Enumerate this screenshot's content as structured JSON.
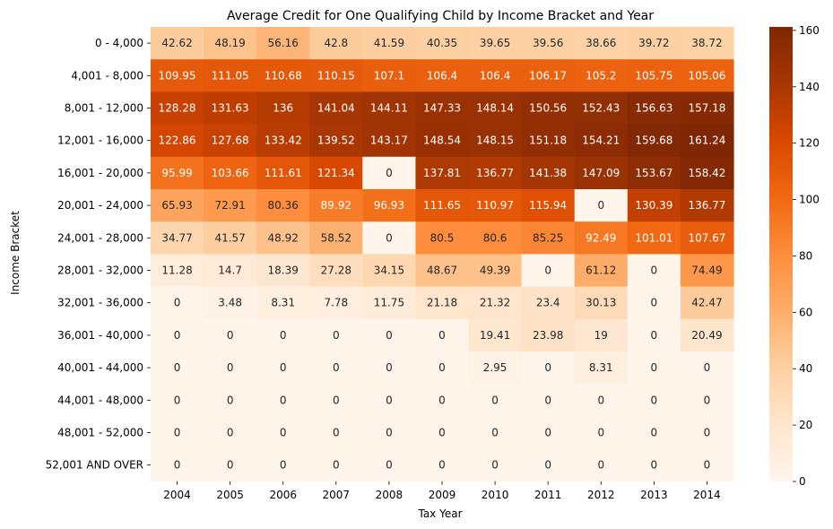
{
  "chart_data": {
    "type": "heatmap",
    "title": "Average Credit for One Qualifying Child by Income Bracket and Year",
    "xlabel": "Tax Year",
    "ylabel": "Income Bracket",
    "x": [
      "2004",
      "2005",
      "2006",
      "2007",
      "2008",
      "2009",
      "2010",
      "2011",
      "2012",
      "2013",
      "2014"
    ],
    "y": [
      "0 - 4,000",
      "4,001 - 8,000",
      "8,001 - 12,000",
      "12,001 - 16,000",
      "16,001 - 20,000",
      "20,001 - 24,000",
      "24,001 - 28,000",
      "28,001 - 32,000",
      "32,001 - 36,000",
      "36,001 - 40,000",
      "40,001 - 44,000",
      "44,001 - 48,000",
      "48,001 - 52,000",
      "52,001 AND OVER"
    ],
    "values": [
      [
        "42.62",
        "48.19",
        "56.16",
        "42.8",
        "41.59",
        "40.35",
        "39.65",
        "39.56",
        "38.66",
        "39.72",
        "38.72"
      ],
      [
        "109.95",
        "111.05",
        "110.68",
        "110.15",
        "107.1",
        "106.4",
        "106.4",
        "106.17",
        "105.2",
        "105.75",
        "105.06"
      ],
      [
        "128.28",
        "131.63",
        "136",
        "141.04",
        "144.11",
        "147.33",
        "148.14",
        "150.56",
        "152.43",
        "156.63",
        "157.18"
      ],
      [
        "122.86",
        "127.68",
        "133.42",
        "139.52",
        "143.17",
        "148.54",
        "148.15",
        "151.18",
        "154.21",
        "159.68",
        "161.24"
      ],
      [
        "95.99",
        "103.66",
        "111.61",
        "121.34",
        "0",
        "137.81",
        "136.77",
        "141.38",
        "147.09",
        "153.67",
        "158.42"
      ],
      [
        "65.93",
        "72.91",
        "80.36",
        "89.92",
        "96.93",
        "111.65",
        "110.97",
        "115.94",
        "0",
        "130.39",
        "136.77"
      ],
      [
        "34.77",
        "41.57",
        "48.92",
        "58.52",
        "0",
        "80.5",
        "80.6",
        "85.25",
        "92.49",
        "101.01",
        "107.67"
      ],
      [
        "11.28",
        "14.7",
        "18.39",
        "27.28",
        "34.15",
        "48.67",
        "49.39",
        "0",
        "61.12",
        "0",
        "74.49"
      ],
      [
        "0",
        "3.48",
        "8.31",
        "7.78",
        "11.75",
        "21.18",
        "21.32",
        "23.4",
        "30.13",
        "0",
        "42.47"
      ],
      [
        "0",
        "0",
        "0",
        "0",
        "0",
        "0",
        "19.41",
        "23.98",
        "19",
        "0",
        "20.49"
      ],
      [
        "0",
        "0",
        "0",
        "0",
        "0",
        "0",
        "2.95",
        "0",
        "8.31",
        "0",
        "0"
      ],
      [
        "0",
        "0",
        "0",
        "0",
        "0",
        "0",
        "0",
        "0",
        "0",
        "0",
        "0"
      ],
      [
        "0",
        "0",
        "0",
        "0",
        "0",
        "0",
        "0",
        "0",
        "0",
        "0",
        "0"
      ],
      [
        "0",
        "0",
        "0",
        "0",
        "0",
        "0",
        "0",
        "0",
        "0",
        "0",
        "0"
      ]
    ],
    "colorbar": {
      "range": [
        0,
        161.24
      ],
      "ticks": [
        "0",
        "20",
        "40",
        "60",
        "80",
        "100",
        "120",
        "140",
        "160"
      ],
      "colormap": "Oranges"
    },
    "colors": [
      "#fff5eb",
      "#fee6ce",
      "#fdd0a2",
      "#fdae6b",
      "#fd8d3c",
      "#f16913",
      "#d94801",
      "#a63603",
      "#7f2704"
    ]
  }
}
